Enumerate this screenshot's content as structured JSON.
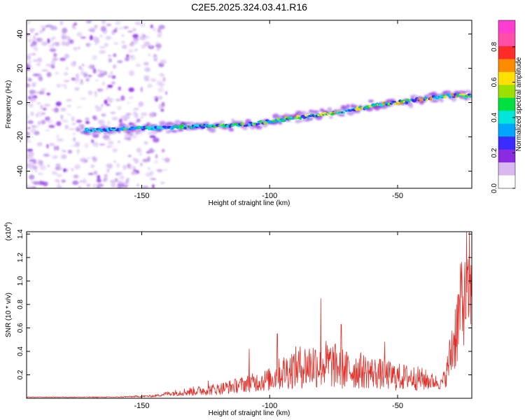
{
  "title": "C2E5.2025.324.03.41.R16",
  "colors": {
    "signal_line": "#e0302a",
    "frame": "#000000",
    "background": "#ffffff"
  },
  "chart_data": [
    {
      "type": "heatmap",
      "title": "C2E5.2025.324.03.41.R16",
      "xlabel": "Height of straight line (km)",
      "ylabel": "Frequency (Hz)",
      "xlim": [
        -195,
        -21
      ],
      "ylim": [
        -50,
        48
      ],
      "xticks": [
        -150,
        -100,
        -50
      ],
      "yticks": [
        40,
        20,
        0,
        -20,
        -40
      ],
      "ridge": {
        "description": "bright narrow-band ridge of high spectral amplitude",
        "x": [
          -170,
          -150,
          -130,
          -110,
          -100,
          -90,
          -80,
          -70,
          -60,
          -50,
          -40,
          -30,
          -21
        ],
        "frequency": [
          -16,
          -15,
          -14,
          -13,
          -11,
          -9,
          -7,
          -5,
          -2,
          0,
          2,
          4,
          4
        ]
      },
      "noise_region": {
        "x_from": -195,
        "x_to": -140,
        "freq_from": -50,
        "freq_to": 48
      },
      "colorbar": {
        "label": "Normalized spectral amplitude",
        "range": [
          0.0,
          0.95
        ],
        "ticks": [
          0.0,
          0.2,
          0.4,
          0.6,
          0.8
        ],
        "tick_labels": [
          "0.0",
          "0.2",
          "0.4",
          "0.6",
          "0.8"
        ],
        "colormap": [
          "#ffffff",
          "#d9b8f2",
          "#8a2be2",
          "#3a2cff",
          "#00a6ff",
          "#00e6d8",
          "#00e040",
          "#9be000",
          "#ffe000",
          "#ff8c00",
          "#ff2a2a",
          "#ff4fa8",
          "#ff3dd0"
        ]
      }
    },
    {
      "type": "line",
      "xlabel": "Height of straight line (km)",
      "ylabel": "SNR (10 * v/v)",
      "y_multiplier_label": "(x10",
      "y_multiplier_exp": "4",
      "y_multiplier_close": ")",
      "xlim": [
        -195,
        -21
      ],
      "ylim": [
        0,
        1.42
      ],
      "xticks": [
        -150,
        -100,
        -50
      ],
      "yticks": [
        0.2,
        0.4,
        0.6,
        0.8,
        1.0,
        1.2,
        1.4
      ],
      "ytick_labels": [
        "0.2",
        "0.4",
        "0.6",
        "0.8",
        "1.0",
        "1.2",
        "1.4"
      ],
      "envelope": {
        "x": [
          -195,
          -160,
          -145,
          -140,
          -130,
          -120,
          -110,
          -100,
          -95,
          -90,
          -85,
          -80,
          -75,
          -70,
          -65,
          -60,
          -55,
          -50,
          -45,
          -40,
          -35,
          -33,
          -31,
          -29,
          -27,
          -25,
          -23,
          -21
        ],
        "mean": [
          0.01,
          0.01,
          0.02,
          0.04,
          0.06,
          0.08,
          0.12,
          0.16,
          0.22,
          0.26,
          0.28,
          0.3,
          0.28,
          0.24,
          0.24,
          0.22,
          0.2,
          0.18,
          0.18,
          0.16,
          0.14,
          0.12,
          0.2,
          0.4,
          0.6,
          0.8,
          0.85,
          0.9
        ],
        "amp": [
          0.003,
          0.004,
          0.01,
          0.02,
          0.04,
          0.05,
          0.07,
          0.1,
          0.15,
          0.18,
          0.2,
          0.22,
          0.2,
          0.17,
          0.16,
          0.14,
          0.13,
          0.12,
          0.11,
          0.1,
          0.06,
          0.05,
          0.1,
          0.25,
          0.35,
          0.4,
          0.35,
          0.3
        ]
      },
      "peaks": [
        {
          "x": -80,
          "y": 0.85
        },
        {
          "x": -72,
          "y": 0.63
        },
        {
          "x": -97,
          "y": 0.55
        },
        {
          "x": -108,
          "y": 0.42
        },
        {
          "x": -55,
          "y": 0.48
        },
        {
          "x": -124,
          "y": 0.15
        },
        {
          "x": -25,
          "y": 1.16
        },
        {
          "x": -23,
          "y": 1.42
        },
        {
          "x": -22,
          "y": 1.42
        }
      ]
    }
  ]
}
